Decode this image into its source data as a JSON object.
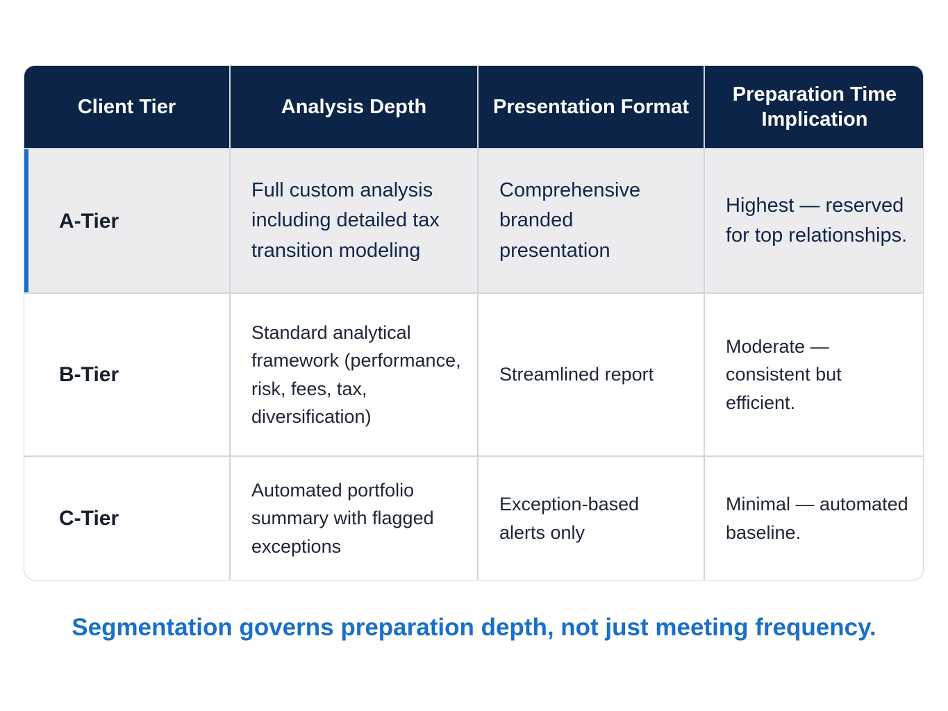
{
  "table": {
    "header": [
      "Client Tier",
      "Analysis Depth",
      "Presentation Format",
      "Preparation Time Implication"
    ],
    "rows": [
      [
        "A-Tier",
        "Full custom analysis including detailed tax transition modeling",
        "Comprehensive branded presentation",
        "Highest — reserved for top relationships."
      ],
      [
        "B-Tier",
        "Standard analytical framework (performance, risk, fees, tax, diversification)",
        "Streamlined report",
        "Moderate — consistent but efficient."
      ],
      [
        "C-Tier",
        "Automated portfolio summary with flagged exceptions",
        "Exception-based alerts only",
        "Minimal — automated baseline."
      ]
    ]
  },
  "caption": "Segmentation governs preparation depth, not just meeting frequency."
}
